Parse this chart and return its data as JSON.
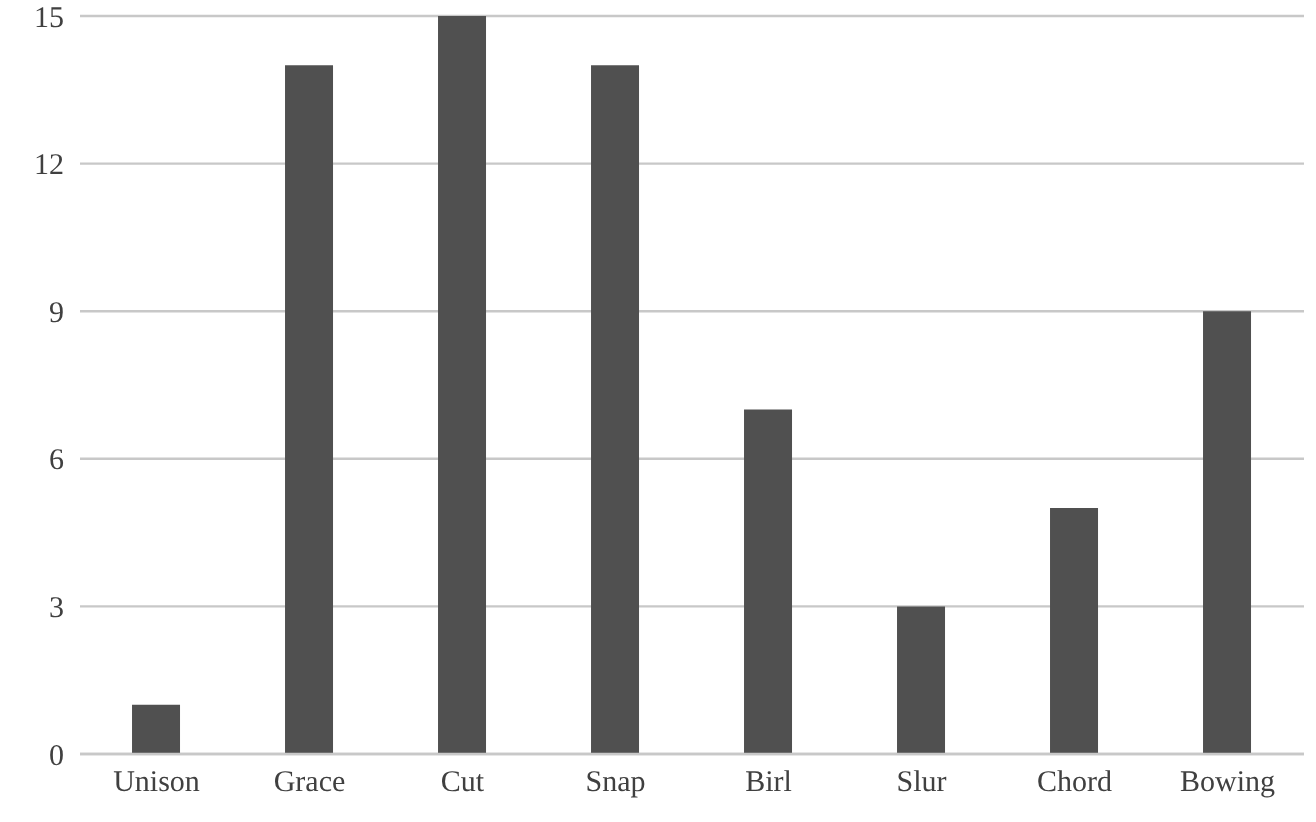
{
  "chart_data": {
    "type": "bar",
    "categories": [
      "Unison",
      "Grace",
      "Cut",
      "Snap",
      "Birl",
      "Slur",
      "Chord",
      "Bowing"
    ],
    "values": [
      1,
      14,
      15,
      14,
      7,
      3,
      5,
      9
    ],
    "color": "#505050",
    "ylim": [
      0,
      15
    ],
    "yticks": [
      0,
      3,
      6,
      9,
      12,
      15
    ],
    "grid": "y"
  }
}
